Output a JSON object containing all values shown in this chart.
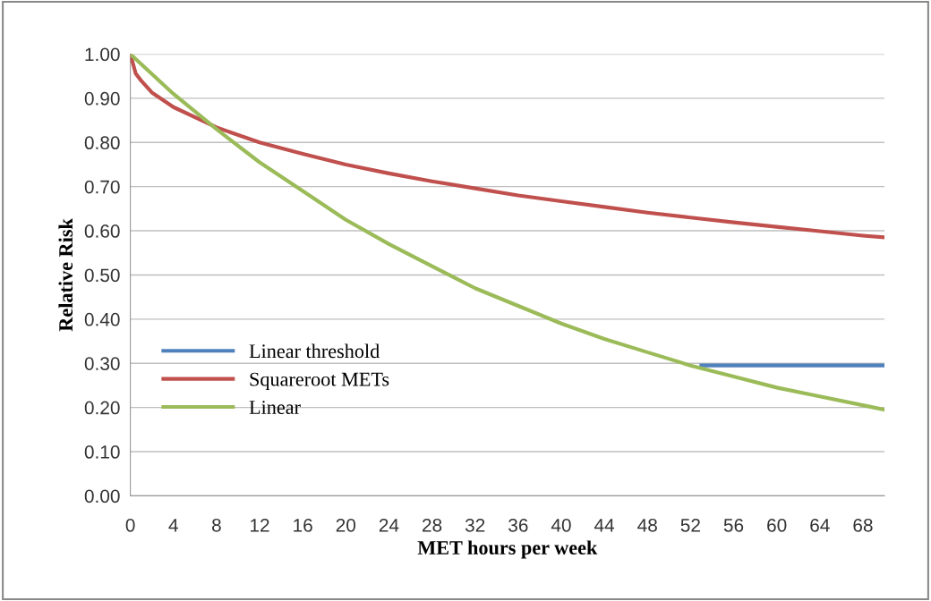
{
  "chart_data": {
    "type": "line",
    "xlabel": "MET hours per week",
    "ylabel": "Relative Risk",
    "xlim": [
      0,
      70
    ],
    "xticks": [
      0,
      4,
      8,
      12,
      16,
      20,
      24,
      28,
      32,
      36,
      40,
      44,
      48,
      52,
      56,
      60,
      64,
      68
    ],
    "ylim": [
      0,
      1
    ],
    "yticks": [
      {
        "value": 0,
        "label": "0.00"
      },
      {
        "value": 0.1,
        "label": "0.10"
      },
      {
        "value": 0.2,
        "label": "0.20"
      },
      {
        "value": 0.3,
        "label": "0.30"
      },
      {
        "value": 0.4,
        "label": "0.40"
      },
      {
        "value": 0.5,
        "label": "0.50"
      },
      {
        "value": 0.6,
        "label": "0.60"
      },
      {
        "value": 0.7,
        "label": "0.70"
      },
      {
        "value": 0.8,
        "label": "0.80"
      },
      {
        "value": 0.9,
        "label": "0.90"
      },
      {
        "value": 1.0,
        "label": "1.00"
      }
    ],
    "grid": "y",
    "legend": "left",
    "marker": "none",
    "line_style": "solid",
    "series": [
      {
        "name": "Linear threshold",
        "color": "#4f81bd",
        "x": [
          53,
          56,
          60,
          64,
          68,
          70
        ],
        "values": [
          0.295,
          0.295,
          0.295,
          0.295,
          0.295,
          0.295
        ]
      },
      {
        "name": "Squareroot METs",
        "color": "#c0504d",
        "x": [
          0,
          0.5,
          1,
          2,
          4,
          8,
          12,
          16,
          20,
          24,
          28,
          32,
          36,
          40,
          44,
          48,
          52,
          56,
          60,
          64,
          68,
          70
        ],
        "values": [
          1.0,
          0.956,
          0.94,
          0.913,
          0.88,
          0.834,
          0.8,
          0.774,
          0.75,
          0.73,
          0.712,
          0.696,
          0.68,
          0.667,
          0.654,
          0.641,
          0.63,
          0.619,
          0.609,
          0.599,
          0.589,
          0.585
        ]
      },
      {
        "name": "Linear",
        "color": "#9bbb59",
        "x": [
          0,
          4,
          8,
          12,
          16,
          20,
          24,
          28,
          32,
          36,
          40,
          44,
          48,
          52,
          56,
          60,
          64,
          68,
          70
        ],
        "values": [
          1.0,
          0.91,
          0.83,
          0.755,
          0.69,
          0.625,
          0.57,
          0.52,
          0.47,
          0.43,
          0.39,
          0.355,
          0.325,
          0.295,
          0.27,
          0.245,
          0.225,
          0.205,
          0.195
        ]
      }
    ]
  }
}
